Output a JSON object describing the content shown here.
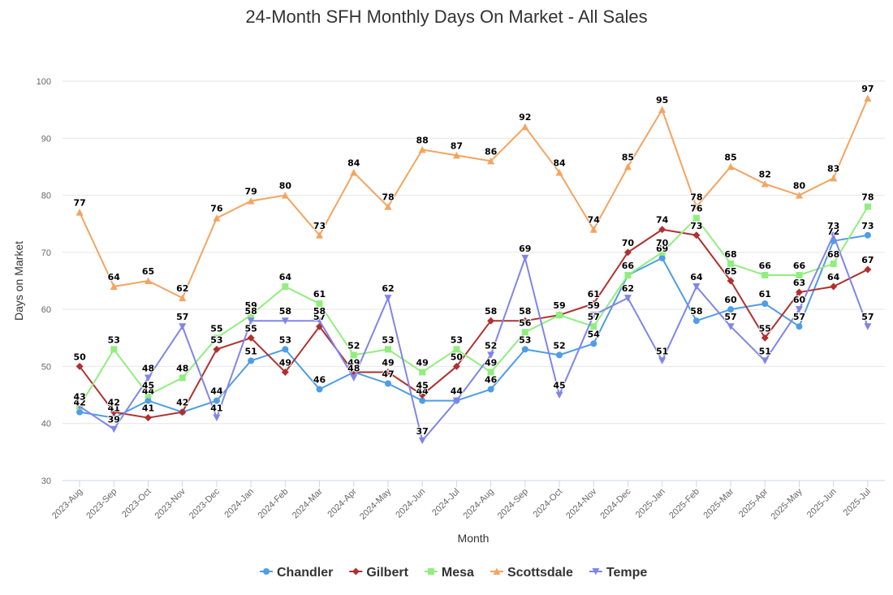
{
  "chart_data": {
    "type": "line",
    "title": "24-Month SFH Monthly Days On Market - All Sales",
    "xlabel": "Month",
    "ylabel": "Days on Market",
    "ylim": [
      30,
      100
    ],
    "yticks": [
      30,
      40,
      50,
      60,
      70,
      80,
      90,
      100
    ],
    "grid": true,
    "legend_position": "bottom-center",
    "categories": [
      "2023-Aug",
      "2023-Sep",
      "2023-Oct",
      "2023-Nov",
      "2023-Dec",
      "2024-Jan",
      "2024-Feb",
      "2024-Mar",
      "2024-Apr",
      "2024-May",
      "2024-Jun",
      "2024-Jul",
      "2024-Aug",
      "2024-Sep",
      "2024-Oct",
      "2024-Nov",
      "2024-Dec",
      "2025-Jan",
      "2025-Feb",
      "2025-Mar",
      "2025-Apr",
      "2025-May",
      "2025-Jun",
      "2025-Jul"
    ],
    "series": [
      {
        "name": "Chandler",
        "color": "#4e9de6",
        "marker": "circle",
        "values": [
          42,
          41,
          44,
          42,
          44,
          51,
          53,
          46,
          49,
          47,
          44,
          44,
          46,
          53,
          52,
          54,
          66,
          69,
          58,
          60,
          61,
          57,
          72,
          73
        ]
      },
      {
        "name": "Gilbert",
        "color": "#b0302f",
        "marker": "diamond",
        "values": [
          50,
          42,
          41,
          42,
          53,
          55,
          49,
          57,
          49,
          49,
          45,
          50,
          58,
          58,
          59,
          61,
          70,
          74,
          73,
          65,
          55,
          63,
          64,
          67
        ]
      },
      {
        "name": "Mesa",
        "color": "#90ee7e",
        "marker": "square",
        "values": [
          43,
          53,
          45,
          48,
          55,
          59,
          64,
          61,
          52,
          53,
          49,
          53,
          49,
          56,
          59,
          57,
          66,
          70,
          76,
          68,
          66,
          66,
          68,
          78
        ]
      },
      {
        "name": "Scottsdale",
        "color": "#f4a460",
        "marker": "triangle-up",
        "values": [
          77,
          64,
          65,
          62,
          76,
          79,
          80,
          73,
          84,
          78,
          88,
          87,
          86,
          92,
          84,
          74,
          85,
          95,
          78,
          85,
          82,
          80,
          83,
          97
        ]
      },
      {
        "name": "Tempe",
        "color": "#8085e9",
        "marker": "triangle-down",
        "values": [
          43,
          39,
          48,
          57,
          41,
          58,
          58,
          58,
          48,
          62,
          37,
          44,
          52,
          69,
          45,
          59,
          62,
          51,
          64,
          57,
          51,
          60,
          73,
          57
        ]
      }
    ]
  }
}
